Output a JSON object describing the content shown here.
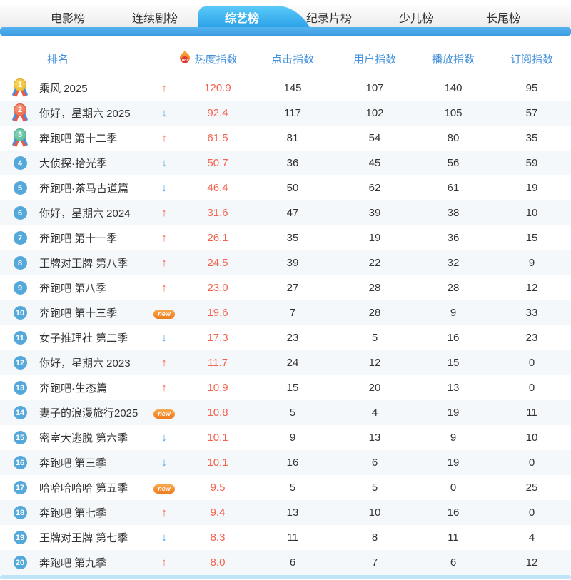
{
  "tabs": [
    {
      "id": "movie",
      "label": "电影榜",
      "active": false
    },
    {
      "id": "series",
      "label": "连续剧榜",
      "active": false
    },
    {
      "id": "variety",
      "label": "综艺榜",
      "active": true
    },
    {
      "id": "documentary",
      "label": "纪录片榜",
      "active": false
    },
    {
      "id": "kids",
      "label": "少儿榜",
      "active": false
    },
    {
      "id": "longtail",
      "label": "长尾榜",
      "active": false
    }
  ],
  "badges": {
    "new_label": "new"
  },
  "icons": {
    "up": "↑",
    "down": "↓",
    "hot_flame": "flame-with-HOT-text"
  },
  "colors": {
    "active_tab_blue": "#2ba3ea",
    "bar_blue": "#49a8ec",
    "header_text_blue": "#4290d9",
    "heat_red": "#f4624e",
    "trend_up_red": "#f4624e",
    "trend_down_blue": "#4aa0e8",
    "new_badge_orange": "#ee7a1e",
    "rank_badge_blue": "#54a8da",
    "medal_1_gold": "#eeb42c",
    "medal_2_orange": "#e9654a",
    "medal_3_green": "#52b996",
    "alt_row_bg": "#f5f8fa",
    "bottom_bar_blue": "#bfe3f7"
  },
  "table": {
    "hot_label": "HOT",
    "headers": {
      "rank": "排名",
      "heat": "热度指数",
      "click": "点击指数",
      "user": "用户指数",
      "play": "播放指数",
      "sub": "订阅指数"
    },
    "rows": [
      {
        "rank": 1,
        "title": "乘风 2025",
        "trend": "up",
        "heat": "120.9",
        "click": 145,
        "user": 107,
        "play": 140,
        "sub": 95
      },
      {
        "rank": 2,
        "title": "你好，星期六 2025",
        "trend": "down",
        "heat": "92.4",
        "click": 117,
        "user": 102,
        "play": 105,
        "sub": 57
      },
      {
        "rank": 3,
        "title": "奔跑吧 第十二季",
        "trend": "up",
        "heat": "61.5",
        "click": 81,
        "user": 54,
        "play": 80,
        "sub": 35
      },
      {
        "rank": 4,
        "title": "大侦探·拾光季",
        "trend": "down",
        "heat": "50.7",
        "click": 36,
        "user": 45,
        "play": 56,
        "sub": 59
      },
      {
        "rank": 5,
        "title": "奔跑吧·茶马古道篇",
        "trend": "down",
        "heat": "46.4",
        "click": 50,
        "user": 62,
        "play": 61,
        "sub": 19
      },
      {
        "rank": 6,
        "title": "你好，星期六 2024",
        "trend": "up",
        "heat": "31.6",
        "click": 47,
        "user": 39,
        "play": 38,
        "sub": 10
      },
      {
        "rank": 7,
        "title": "奔跑吧 第十一季",
        "trend": "up",
        "heat": "26.1",
        "click": 35,
        "user": 19,
        "play": 36,
        "sub": 15
      },
      {
        "rank": 8,
        "title": "王牌对王牌 第八季",
        "trend": "up",
        "heat": "24.5",
        "click": 39,
        "user": 22,
        "play": 32,
        "sub": 9
      },
      {
        "rank": 9,
        "title": "奔跑吧 第八季",
        "trend": "up",
        "heat": "23.0",
        "click": 27,
        "user": 28,
        "play": 28,
        "sub": 12
      },
      {
        "rank": 10,
        "title": "奔跑吧 第十三季",
        "trend": "new",
        "heat": "19.6",
        "click": 7,
        "user": 28,
        "play": 9,
        "sub": 33
      },
      {
        "rank": 11,
        "title": "女子推理社 第二季",
        "trend": "down",
        "heat": "17.3",
        "click": 23,
        "user": 5,
        "play": 16,
        "sub": 23
      },
      {
        "rank": 12,
        "title": "你好，星期六 2023",
        "trend": "up",
        "heat": "11.7",
        "click": 24,
        "user": 12,
        "play": 15,
        "sub": 0
      },
      {
        "rank": 13,
        "title": "奔跑吧·生态篇",
        "trend": "up",
        "heat": "10.9",
        "click": 15,
        "user": 20,
        "play": 13,
        "sub": 0
      },
      {
        "rank": 14,
        "title": "妻子的浪漫旅行2025",
        "trend": "new",
        "heat": "10.8",
        "click": 5,
        "user": 4,
        "play": 19,
        "sub": 11
      },
      {
        "rank": 15,
        "title": "密室大逃脱 第六季",
        "trend": "down",
        "heat": "10.1",
        "click": 9,
        "user": 13,
        "play": 9,
        "sub": 10
      },
      {
        "rank": 16,
        "title": "奔跑吧 第三季",
        "trend": "down",
        "heat": "10.1",
        "click": 16,
        "user": 6,
        "play": 19,
        "sub": 0
      },
      {
        "rank": 17,
        "title": "哈哈哈哈哈 第五季",
        "trend": "new",
        "heat": "9.5",
        "click": 5,
        "user": 5,
        "play": 0,
        "sub": 25
      },
      {
        "rank": 18,
        "title": "奔跑吧 第七季",
        "trend": "up",
        "heat": "9.4",
        "click": 13,
        "user": 10,
        "play": 16,
        "sub": 0
      },
      {
        "rank": 19,
        "title": "王牌对王牌 第七季",
        "trend": "down",
        "heat": "8.3",
        "click": 11,
        "user": 8,
        "play": 11,
        "sub": 4
      },
      {
        "rank": 20,
        "title": "奔跑吧 第九季",
        "trend": "up",
        "heat": "8.0",
        "click": 6,
        "user": 7,
        "play": 6,
        "sub": 12
      }
    ]
  }
}
